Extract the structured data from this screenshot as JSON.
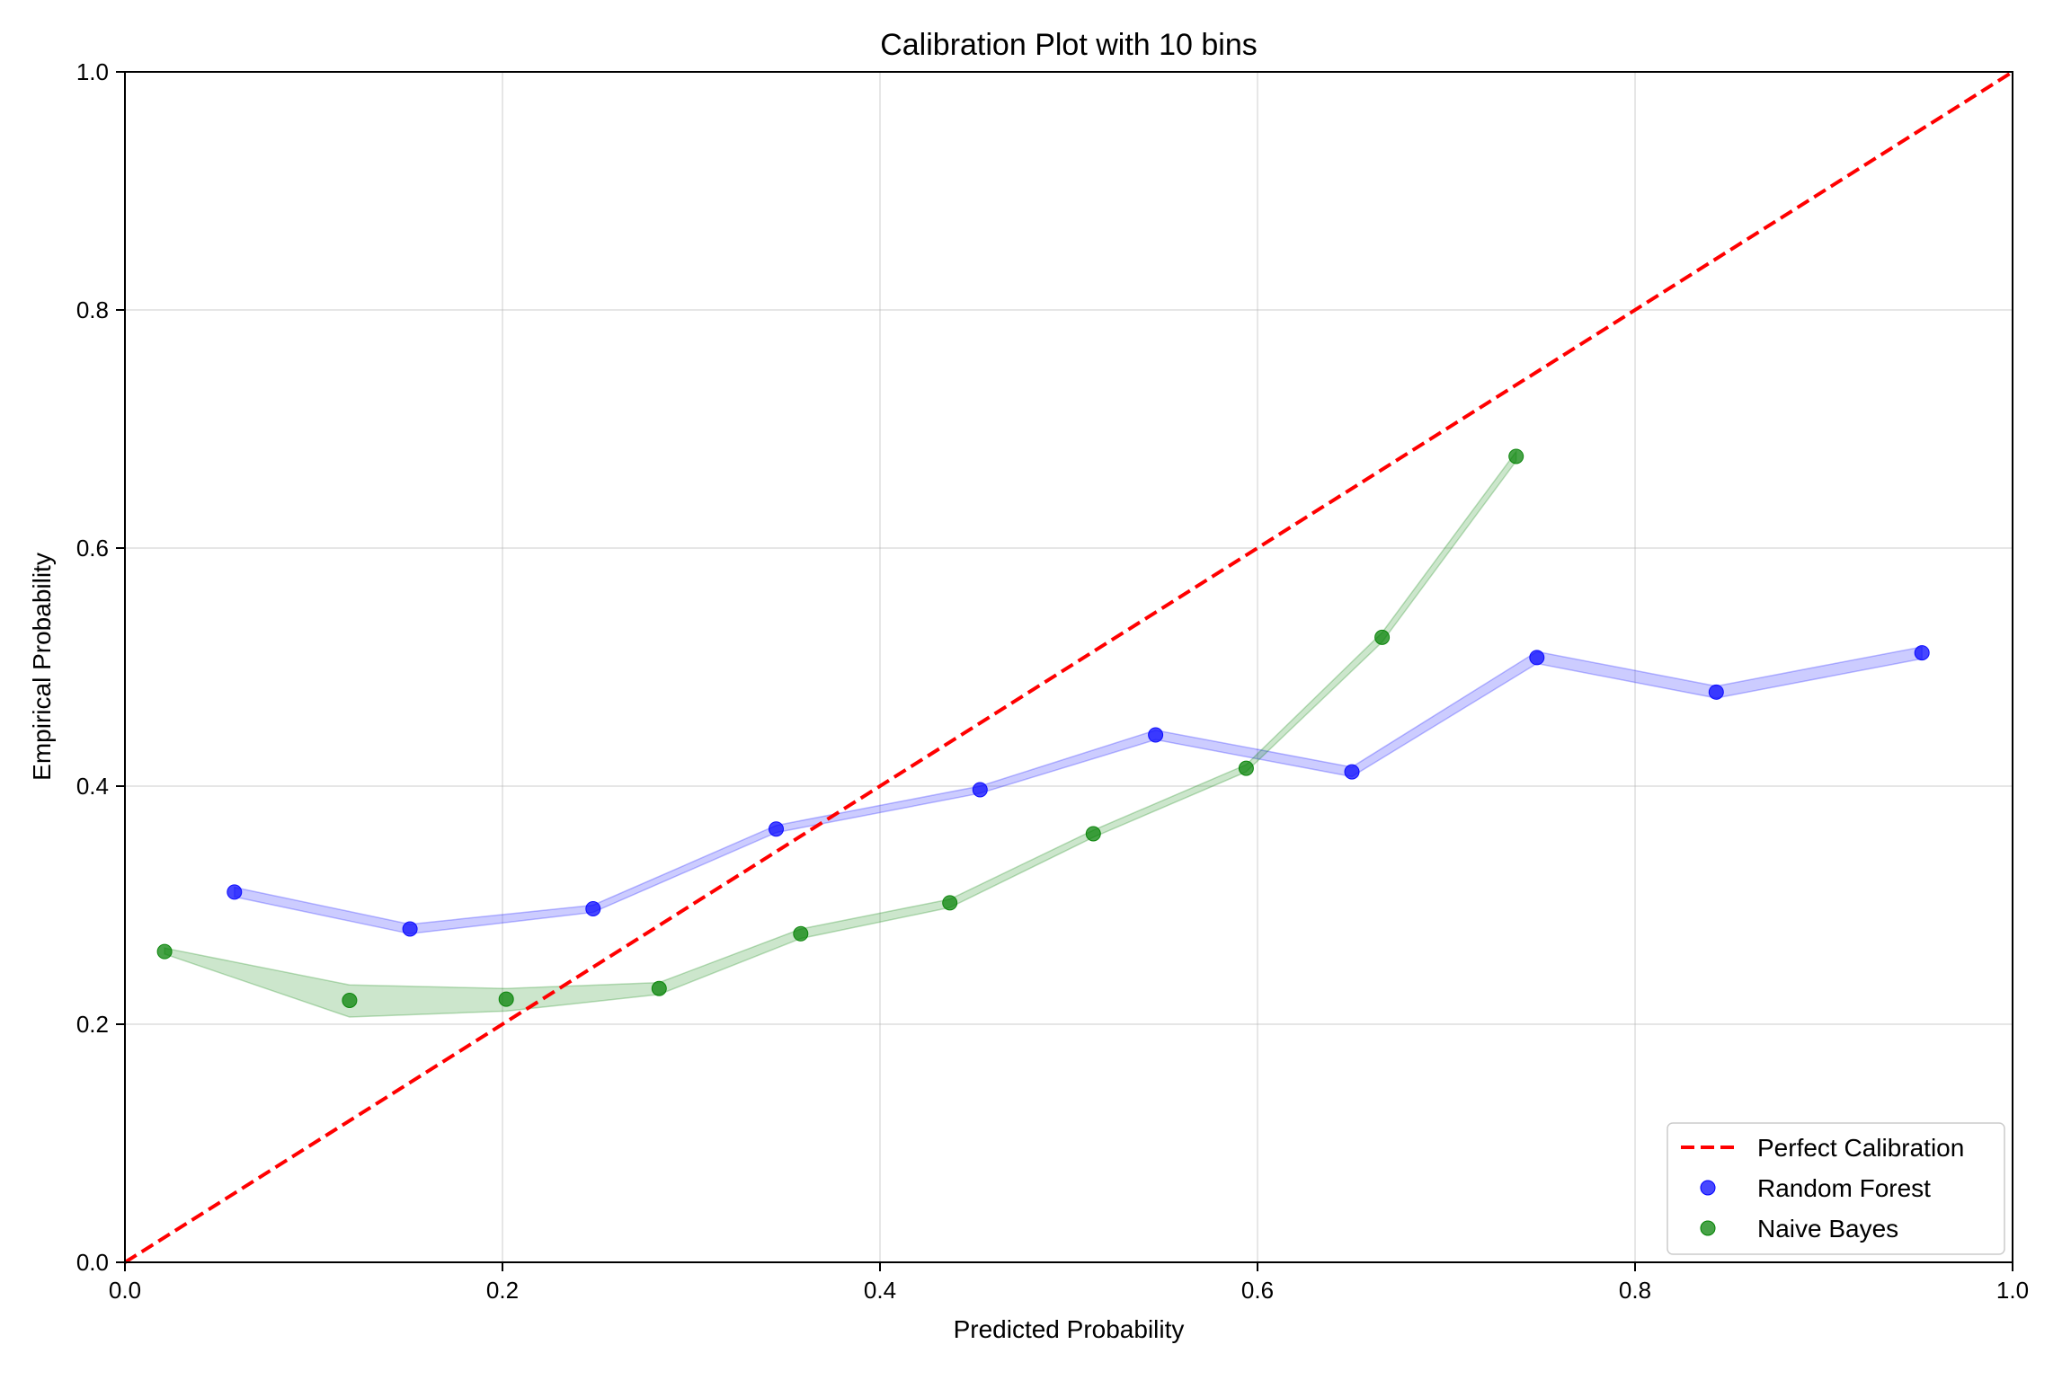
{
  "chart_data": {
    "type": "scatter",
    "title": "Calibration Plot with 10 bins",
    "xlabel": "Predicted Probability",
    "ylabel": "Empirical Probability",
    "xlim": [
      0.0,
      1.0
    ],
    "ylim": [
      0.0,
      1.0
    ],
    "xticks": [
      "0.0",
      "0.2",
      "0.4",
      "0.6",
      "0.8",
      "1.0"
    ],
    "yticks": [
      "0.0",
      "0.2",
      "0.4",
      "0.6",
      "0.8",
      "1.0"
    ],
    "grid": true,
    "legend_position": "lower-right",
    "reference_line": {
      "name": "Perfect Calibration",
      "x": [
        0.0,
        1.0
      ],
      "y": [
        0.0,
        1.0
      ],
      "color": "#ff0000",
      "style": "dashed"
    },
    "series": [
      {
        "name": "Random Forest",
        "color": "#0000ff",
        "x": [
          0.058,
          0.151,
          0.248,
          0.345,
          0.453,
          0.546,
          0.65,
          0.748,
          0.843,
          0.952
        ],
        "y": [
          0.311,
          0.28,
          0.297,
          0.364,
          0.397,
          0.443,
          0.412,
          0.508,
          0.479,
          0.512
        ],
        "band_lower": [
          0.307,
          0.276,
          0.294,
          0.361,
          0.394,
          0.439,
          0.408,
          0.503,
          0.474,
          0.507
        ],
        "band_upper": [
          0.315,
          0.284,
          0.3,
          0.367,
          0.4,
          0.447,
          0.416,
          0.513,
          0.484,
          0.517
        ]
      },
      {
        "name": "Naive Bayes",
        "color": "#008000",
        "x": [
          0.021,
          0.119,
          0.202,
          0.283,
          0.358,
          0.437,
          0.513,
          0.594,
          0.666,
          0.737
        ],
        "y": [
          0.261,
          0.22,
          0.221,
          0.23,
          0.276,
          0.302,
          0.36,
          0.415,
          0.525,
          0.677
        ],
        "band_lower": [
          0.259,
          0.206,
          0.211,
          0.225,
          0.272,
          0.298,
          0.357,
          0.412,
          0.521,
          0.673
        ],
        "band_upper": [
          0.264,
          0.233,
          0.23,
          0.235,
          0.28,
          0.305,
          0.363,
          0.418,
          0.529,
          0.681
        ]
      }
    ]
  }
}
